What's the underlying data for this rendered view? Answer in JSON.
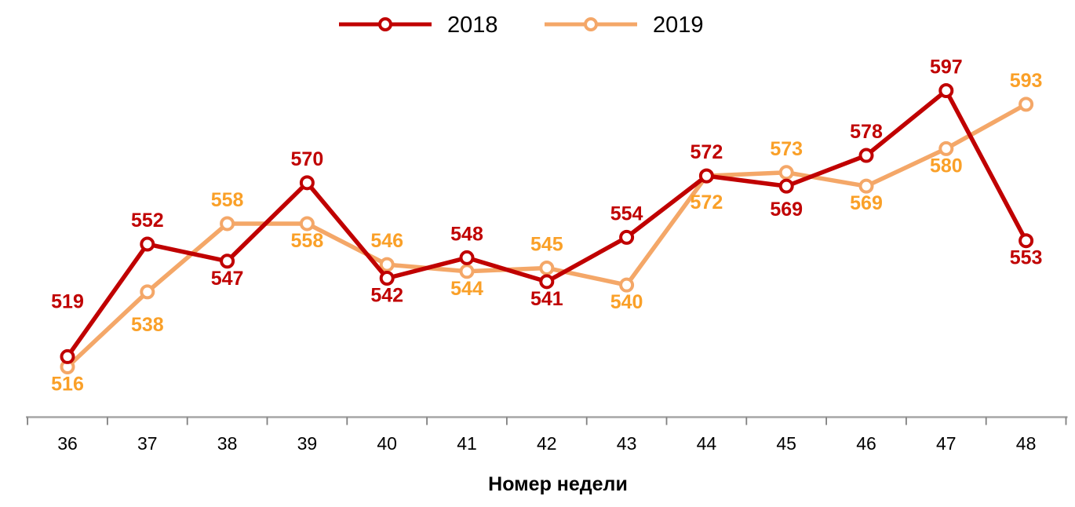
{
  "chart_data": {
    "type": "line",
    "title": "",
    "xlabel": "Номер недели",
    "ylabel": "",
    "categories": [
      36,
      37,
      38,
      39,
      40,
      41,
      42,
      43,
      44,
      45,
      46,
      47,
      48
    ],
    "series": [
      {
        "name": "2018",
        "values": [
          519,
          552,
          547,
          570,
          542,
          548,
          541,
          554,
          572,
          569,
          578,
          597,
          553
        ],
        "color": "#C00000",
        "label_color": "#C00000",
        "marker_fill": "#FFFFFF"
      },
      {
        "name": "2019",
        "values": [
          516,
          538,
          558,
          558,
          546,
          544,
          545,
          540,
          572,
          573,
          569,
          580,
          593
        ],
        "color": "#F4A768",
        "label_color": "#FAA028",
        "marker_fill": "#FFFFFF"
      }
    ],
    "ylim": [
      500,
      610
    ],
    "grid": false,
    "legend_position": "top",
    "data_labels": true,
    "axis_color": "#A6A6A6",
    "tick_color": "#808080",
    "text_color": "#000000",
    "marker_shape": "circle",
    "label_offset_overrides": {
      "2018": {
        "0": -40,
        "9": 8
      },
      "2019": {
        "1": 20,
        "8": 12
      }
    }
  }
}
